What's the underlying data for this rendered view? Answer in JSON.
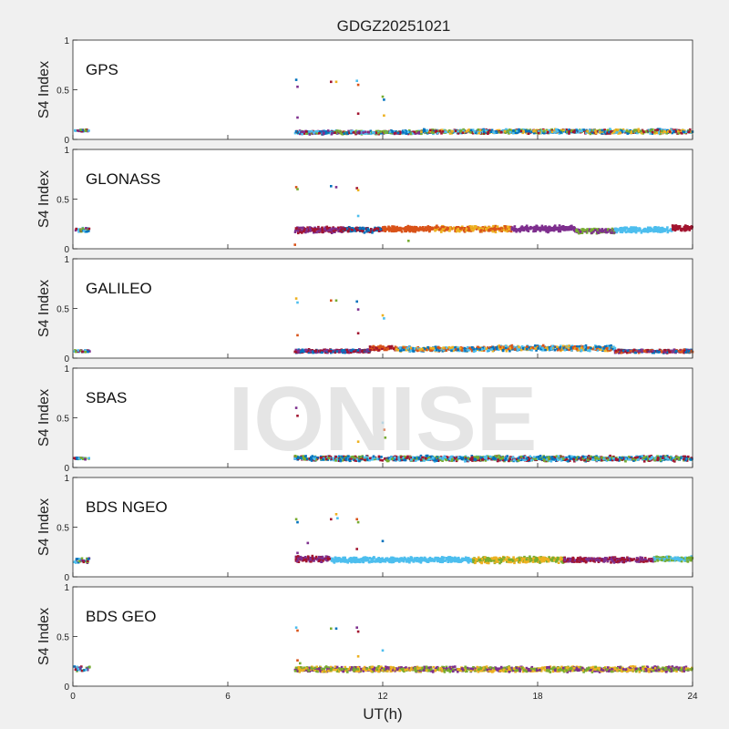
{
  "chart_data": {
    "type": "scatter",
    "title": "GDGZ20251021",
    "xlabel": "UT(h)",
    "ylabel": "S4 Index",
    "xlim": [
      0,
      24
    ],
    "ylim": [
      0,
      1
    ],
    "xticks": [
      "0",
      "6",
      "12",
      "18",
      "24"
    ],
    "yticks": [
      "0",
      "0.5",
      "1"
    ],
    "watermark": "IONISE",
    "grid": false,
    "series_colors": [
      "#0072BD",
      "#D95319",
      "#EDB120",
      "#7E2F8E",
      "#77AC30",
      "#4DBEEE",
      "#A2142F"
    ],
    "panels": [
      {
        "label": "GPS",
        "early": [
          0.08,
          0.1
        ],
        "segments": [
          {
            "x": [
              8.6,
              13.5
            ],
            "y": 0.07,
            "spread": 0.02,
            "colors": [
              0,
              3,
              4,
              5,
              6
            ]
          },
          {
            "x": [
              13.5,
              24.0
            ],
            "y": 0.08,
            "spread": 0.025,
            "colors": [
              0,
              2,
              5,
              6,
              4
            ]
          }
        ],
        "outliers": [
          [
            8.65,
            0.6
          ],
          [
            8.7,
            0.53
          ],
          [
            10.0,
            0.58
          ],
          [
            10.2,
            0.58
          ],
          [
            11.0,
            0.59
          ],
          [
            11.05,
            0.55
          ],
          [
            12.0,
            0.43
          ],
          [
            12.05,
            0.4
          ],
          [
            8.7,
            0.22
          ],
          [
            11.05,
            0.26
          ],
          [
            12.05,
            0.24
          ]
        ]
      },
      {
        "label": "GLONASS",
        "early": [
          0.17,
          0.21
        ],
        "segments": [
          {
            "x": [
              8.6,
              10.5
            ],
            "y": 0.19,
            "spread": 0.035,
            "colors": [
              6,
              3
            ]
          },
          {
            "x": [
              10.5,
              12.0
            ],
            "y": 0.19,
            "spread": 0.03,
            "colors": [
              0,
              6
            ]
          },
          {
            "x": [
              12.0,
              14.0
            ],
            "y": 0.2,
            "spread": 0.03,
            "colors": [
              1
            ]
          },
          {
            "x": [
              14.0,
              17.0
            ],
            "y": 0.2,
            "spread": 0.035,
            "colors": [
              2,
              1
            ]
          },
          {
            "x": [
              17.0,
              19.5
            ],
            "y": 0.2,
            "spread": 0.035,
            "colors": [
              3
            ]
          },
          {
            "x": [
              19.5,
              21.0
            ],
            "y": 0.18,
            "spread": 0.03,
            "colors": [
              4,
              3
            ]
          },
          {
            "x": [
              21.0,
              23.2
            ],
            "y": 0.19,
            "spread": 0.03,
            "colors": [
              5
            ]
          },
          {
            "x": [
              23.2,
              24.0
            ],
            "y": 0.21,
            "spread": 0.03,
            "colors": [
              6
            ]
          }
        ],
        "outliers": [
          [
            8.65,
            0.62
          ],
          [
            8.7,
            0.6
          ],
          [
            10.0,
            0.63
          ],
          [
            10.2,
            0.62
          ],
          [
            11.0,
            0.61
          ],
          [
            11.05,
            0.59
          ],
          [
            11.05,
            0.33
          ],
          [
            8.6,
            0.04
          ],
          [
            13.0,
            0.08
          ]
        ]
      },
      {
        "label": "GALILEO",
        "early": [
          0.06,
          0.08
        ],
        "segments": [
          {
            "x": [
              8.6,
              11.5
            ],
            "y": 0.07,
            "spread": 0.02,
            "colors": [
              6,
              3,
              0
            ]
          },
          {
            "x": [
              11.5,
              12.5
            ],
            "y": 0.1,
            "spread": 0.025,
            "colors": [
              6,
              1
            ]
          },
          {
            "x": [
              12.5,
              16.5
            ],
            "y": 0.09,
            "spread": 0.025,
            "colors": [
              2,
              5,
              0,
              1
            ]
          },
          {
            "x": [
              16.5,
              21.0
            ],
            "y": 0.1,
            "spread": 0.03,
            "colors": [
              2,
              1,
              0,
              5
            ]
          },
          {
            "x": [
              21.0,
              24.0
            ],
            "y": 0.07,
            "spread": 0.02,
            "colors": [
              6,
              1,
              0,
              3
            ]
          }
        ],
        "outliers": [
          [
            8.65,
            0.6
          ],
          [
            8.7,
            0.56
          ],
          [
            10.0,
            0.58
          ],
          [
            10.2,
            0.58
          ],
          [
            11.0,
            0.57
          ],
          [
            11.05,
            0.49
          ],
          [
            11.05,
            0.25
          ],
          [
            12.0,
            0.43
          ],
          [
            12.05,
            0.4
          ],
          [
            8.7,
            0.23
          ]
        ]
      },
      {
        "label": "SBAS",
        "early": [
          0.08,
          0.1
        ],
        "segments": [
          {
            "x": [
              8.6,
              24.0
            ],
            "y": 0.09,
            "spread": 0.03,
            "colors": [
              6,
              0,
              4,
              5
            ]
          }
        ],
        "outliers": [
          [
            8.65,
            0.6
          ],
          [
            8.7,
            0.52
          ],
          [
            11.05,
            0.26
          ],
          [
            12.0,
            0.45
          ],
          [
            12.05,
            0.38
          ],
          [
            12.1,
            0.3
          ]
        ]
      },
      {
        "label": "BDS NGEO",
        "early": [
          0.14,
          0.19
        ],
        "segments": [
          {
            "x": [
              8.6,
              10.0
            ],
            "y": 0.18,
            "spread": 0.035,
            "colors": [
              3,
              6
            ]
          },
          {
            "x": [
              10.0,
              15.5
            ],
            "y": 0.17,
            "spread": 0.03,
            "colors": [
              5
            ]
          },
          {
            "x": [
              15.5,
              19.0
            ],
            "y": 0.17,
            "spread": 0.035,
            "colors": [
              4,
              2
            ]
          },
          {
            "x": [
              19.0,
              22.5
            ],
            "y": 0.17,
            "spread": 0.03,
            "colors": [
              6,
              3
            ]
          },
          {
            "x": [
              22.5,
              24.0
            ],
            "y": 0.18,
            "spread": 0.03,
            "colors": [
              5,
              4
            ]
          }
        ],
        "outliers": [
          [
            8.65,
            0.58
          ],
          [
            8.7,
            0.55
          ],
          [
            9.1,
            0.34
          ],
          [
            10.0,
            0.58
          ],
          [
            10.2,
            0.63
          ],
          [
            10.25,
            0.59
          ],
          [
            11.0,
            0.58
          ],
          [
            11.05,
            0.55
          ],
          [
            12.0,
            0.36
          ],
          [
            8.7,
            0.24
          ],
          [
            11.0,
            0.28
          ]
        ]
      },
      {
        "label": "BDS GEO",
        "early": [
          0.15,
          0.2
        ],
        "segments": [
          {
            "x": [
              8.6,
              24.0
            ],
            "y": 0.17,
            "spread": 0.03,
            "colors": [
              3,
              2,
              4
            ]
          }
        ],
        "outliers": [
          [
            8.65,
            0.59
          ],
          [
            8.7,
            0.56
          ],
          [
            10.0,
            0.58
          ],
          [
            10.2,
            0.58
          ],
          [
            11.0,
            0.59
          ],
          [
            11.05,
            0.55
          ],
          [
            11.05,
            0.3
          ],
          [
            12.0,
            0.36
          ],
          [
            8.7,
            0.26
          ],
          [
            8.8,
            0.23
          ]
        ]
      }
    ]
  }
}
